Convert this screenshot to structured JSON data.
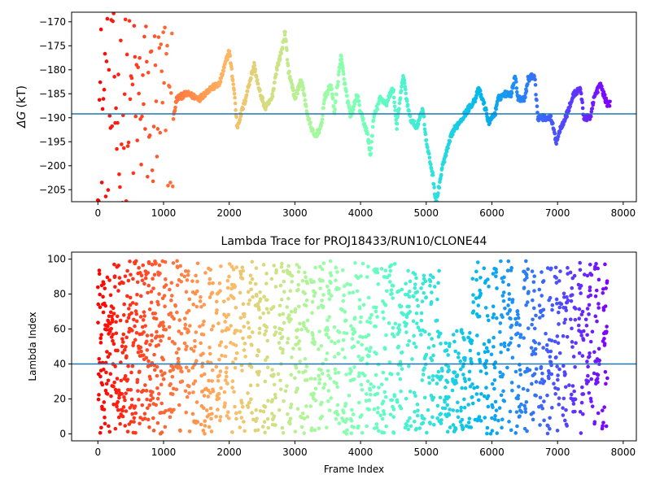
{
  "chart_data": [
    {
      "type": "scatter",
      "title": "",
      "xlabel": "",
      "ylabel_main": "ΔG",
      "ylabel_unit": "(kT)",
      "xlim": [
        -400,
        8200
      ],
      "ylim": [
        -207.5,
        -168
      ],
      "xticks": [
        0,
        1000,
        2000,
        3000,
        4000,
        5000,
        6000,
        7000,
        8000
      ],
      "yticks": [
        -205,
        -200,
        -195,
        -190,
        -185,
        -180,
        -175,
        -170
      ],
      "hline": -189.2,
      "hline_color": "#1f77b4",
      "colormap": "rainbow",
      "frames": 7800,
      "trace_keypoints": [
        [
          1150,
          -190
        ],
        [
          1200,
          -186
        ],
        [
          1350,
          -185
        ],
        [
          1550,
          -186
        ],
        [
          1700,
          -184
        ],
        [
          1850,
          -183
        ],
        [
          2000,
          -176
        ],
        [
          2080,
          -185
        ],
        [
          2120,
          -192
        ],
        [
          2250,
          -186
        ],
        [
          2300,
          -183
        ],
        [
          2380,
          -179
        ],
        [
          2450,
          -184
        ],
        [
          2550,
          -188
        ],
        [
          2650,
          -186
        ],
        [
          2720,
          -180
        ],
        [
          2800,
          -176
        ],
        [
          2850,
          -172
        ],
        [
          2900,
          -180
        ],
        [
          3000,
          -186
        ],
        [
          3100,
          -182
        ],
        [
          3200,
          -190
        ],
        [
          3300,
          -194
        ],
        [
          3400,
          -192
        ],
        [
          3450,
          -186
        ],
        [
          3550,
          -183
        ],
        [
          3600,
          -189
        ],
        [
          3700,
          -177
        ],
        [
          3760,
          -183
        ],
        [
          3850,
          -190
        ],
        [
          3950,
          -185
        ],
        [
          4000,
          -189
        ],
        [
          4100,
          -193
        ],
        [
          4150,
          -198
        ],
        [
          4200,
          -190
        ],
        [
          4300,
          -186
        ],
        [
          4400,
          -187
        ],
        [
          4450,
          -185
        ],
        [
          4500,
          -184
        ],
        [
          4550,
          -192
        ],
        [
          4650,
          -181
        ],
        [
          4700,
          -186
        ],
        [
          4750,
          -190
        ],
        [
          4850,
          -192
        ],
        [
          4950,
          -188
        ],
        [
          5000,
          -195
        ],
        [
          5100,
          -202
        ],
        [
          5150,
          -208
        ],
        [
          5250,
          -200
        ],
        [
          5400,
          -193
        ],
        [
          5550,
          -190
        ],
        [
          5650,
          -188
        ],
        [
          5750,
          -186
        ],
        [
          5800,
          -184
        ],
        [
          5900,
          -188
        ],
        [
          5950,
          -191
        ],
        [
          6050,
          -189
        ],
        [
          6100,
          -186
        ],
        [
          6200,
          -185
        ],
        [
          6300,
          -185
        ],
        [
          6350,
          -181
        ],
        [
          6400,
          -186
        ],
        [
          6500,
          -186
        ],
        [
          6550,
          -182
        ],
        [
          6650,
          -181
        ],
        [
          6700,
          -190
        ],
        [
          6900,
          -190
        ],
        [
          6980,
          -195
        ],
        [
          7050,
          -192
        ],
        [
          7150,
          -189
        ],
        [
          7250,
          -185
        ],
        [
          7350,
          -184
        ],
        [
          7400,
          -190
        ],
        [
          7500,
          -190
        ],
        [
          7550,
          -186
        ],
        [
          7650,
          -183
        ],
        [
          7750,
          -187
        ],
        [
          7800,
          -187
        ]
      ]
    },
    {
      "type": "scatter",
      "title": "Lambda Trace for PROJ18433/RUN10/CLONE44",
      "xlabel": "Frame Index",
      "ylabel": "Lambda Index",
      "xlim": [
        -400,
        8200
      ],
      "ylim": [
        -4,
        104
      ],
      "xticks": [
        0,
        1000,
        2000,
        3000,
        4000,
        5000,
        6000,
        7000,
        8000
      ],
      "yticks": [
        0,
        20,
        40,
        60,
        80,
        100
      ],
      "hline": 40,
      "hline_color": "#1f77b4",
      "colormap": "rainbow",
      "frames": 7780,
      "lambda_range": [
        0,
        99
      ]
    }
  ]
}
